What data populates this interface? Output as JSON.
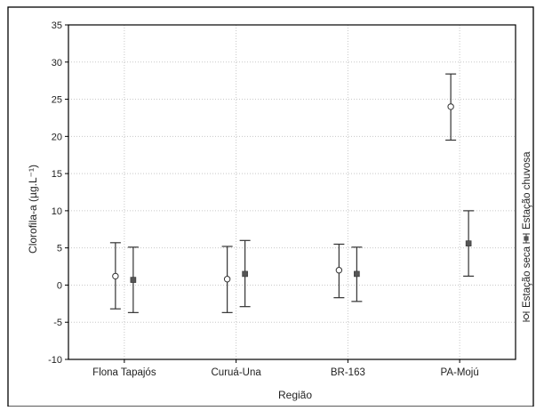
{
  "chart_data": {
    "type": "errorbar",
    "xlabel": "Região",
    "ylabel": "Clorofila-a (µg.L⁻¹)",
    "ylim": [
      -10,
      35
    ],
    "yticks": [
      -10,
      -5,
      0,
      5,
      10,
      15,
      20,
      25,
      30,
      35
    ],
    "categories": [
      "Flona Tapajós",
      "Curuá-Una",
      "BR-163",
      "PA-Mojú"
    ],
    "grid": true,
    "legend_position": "right-vertical",
    "series": [
      {
        "name": "Estação seca",
        "marker": "open-circle",
        "color": "#333333",
        "values": [
          1.2,
          0.8,
          2.0,
          24.0
        ],
        "lower": [
          -3.2,
          -3.7,
          -1.7,
          19.5
        ],
        "upper": [
          5.7,
          5.2,
          5.5,
          28.4
        ]
      },
      {
        "name": "Estação chuvosa",
        "marker": "filled-square",
        "color": "#555555",
        "values": [
          0.7,
          1.5,
          1.5,
          5.6
        ],
        "lower": [
          -3.7,
          -2.9,
          -2.2,
          1.2
        ],
        "upper": [
          5.1,
          6.0,
          5.1,
          10.0
        ]
      }
    ]
  }
}
